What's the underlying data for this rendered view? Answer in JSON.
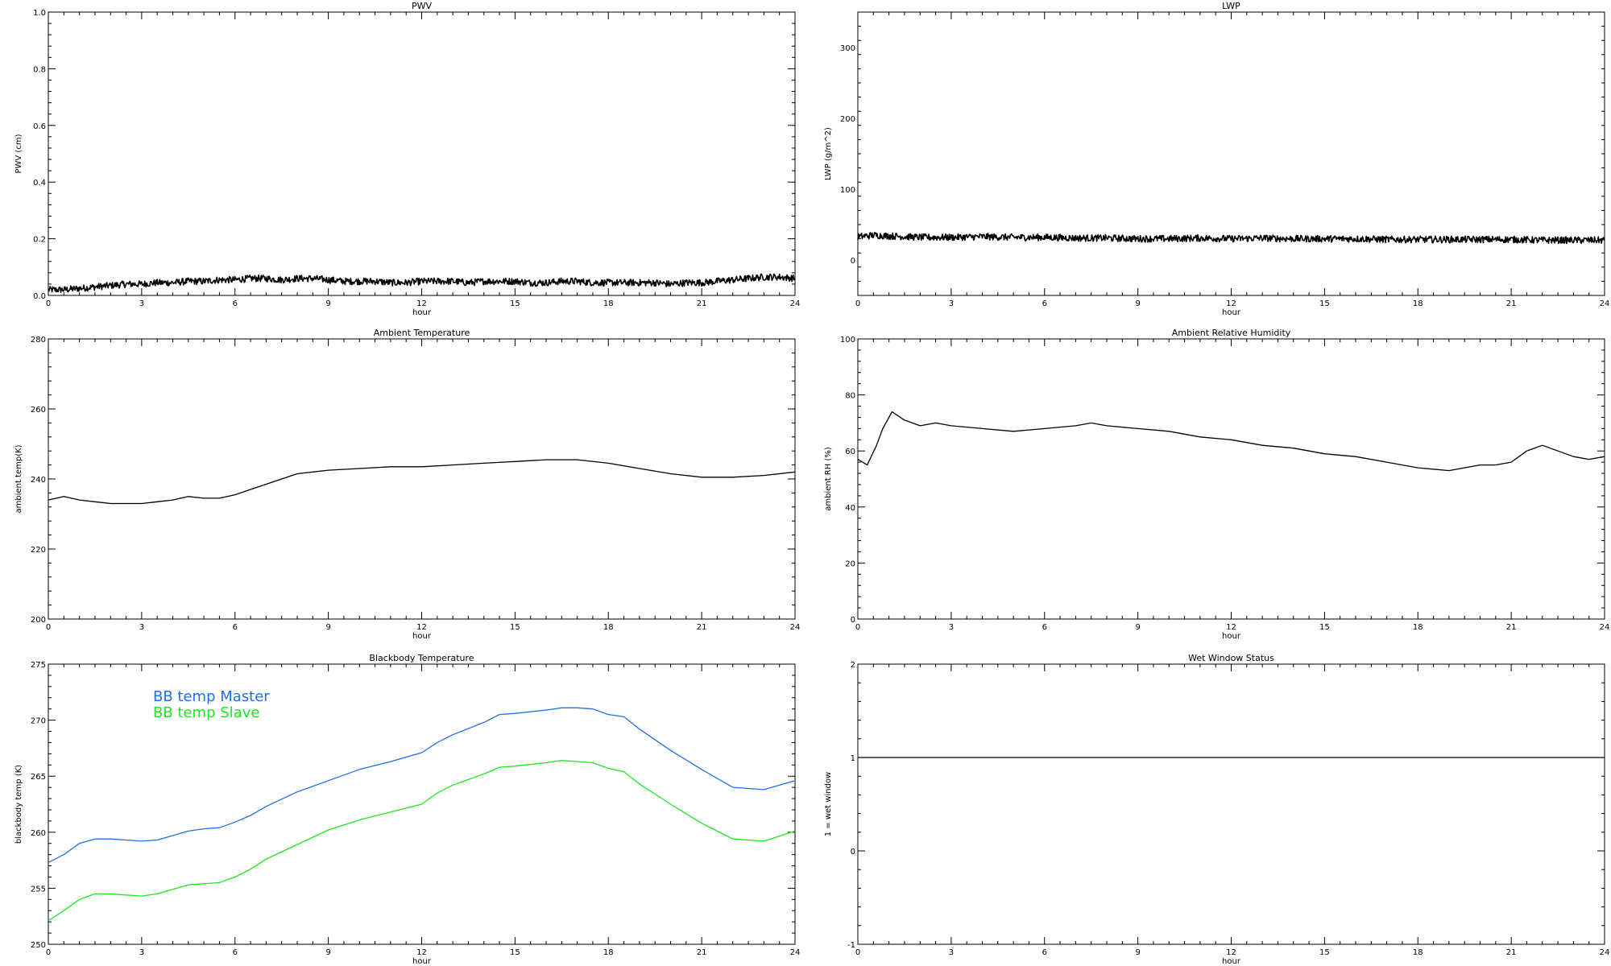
{
  "chart_data": [
    {
      "type": "line",
      "title": "PWV",
      "xlabel": "hour",
      "ylabel": "PWV (cm)",
      "xlim": [
        0,
        24
      ],
      "ylim": [
        0.0,
        1.0
      ],
      "xticks": [
        0,
        3,
        6,
        9,
        12,
        15,
        18,
        21,
        24
      ],
      "xtick_labels": [
        "0",
        "3",
        "6",
        "9",
        "12",
        "15",
        "18",
        "21",
        "24"
      ],
      "yticks": [
        0.0,
        0.2,
        0.4,
        0.6,
        0.8,
        1.0
      ],
      "ytick_labels": [
        "0.0",
        "0.2",
        "0.4",
        "0.6",
        "0.8",
        "1.0"
      ],
      "noisy": true,
      "series": [
        {
          "color": "#000000",
          "x": [
            0,
            0.5,
            1,
            1.5,
            2,
            2.5,
            3,
            3.5,
            4,
            4.5,
            5,
            5.5,
            6,
            6.5,
            7,
            7.5,
            8,
            8.5,
            9,
            9.5,
            10,
            10.5,
            11,
            11.5,
            12,
            12.5,
            13,
            13.5,
            14,
            14.5,
            15,
            15.5,
            16,
            16.5,
            17,
            17.5,
            18,
            18.5,
            19,
            19.5,
            20,
            20.5,
            21,
            21.5,
            22,
            22.5,
            23,
            23.5,
            24
          ],
          "y": [
            0.02,
            0.02,
            0.025,
            0.03,
            0.035,
            0.04,
            0.04,
            0.045,
            0.045,
            0.05,
            0.05,
            0.055,
            0.055,
            0.06,
            0.06,
            0.055,
            0.06,
            0.06,
            0.055,
            0.05,
            0.05,
            0.05,
            0.045,
            0.045,
            0.05,
            0.05,
            0.05,
            0.045,
            0.05,
            0.05,
            0.05,
            0.045,
            0.045,
            0.05,
            0.05,
            0.045,
            0.045,
            0.045,
            0.045,
            0.045,
            0.04,
            0.045,
            0.045,
            0.05,
            0.055,
            0.06,
            0.065,
            0.065,
            0.06
          ]
        }
      ]
    },
    {
      "type": "line",
      "title": "LWP",
      "xlabel": "hour",
      "ylabel": "LWP (g/m^2)",
      "xlim": [
        0,
        24
      ],
      "ylim": [
        -50,
        350
      ],
      "xticks": [
        0,
        3,
        6,
        9,
        12,
        15,
        18,
        21,
        24
      ],
      "xtick_labels": [
        "0",
        "3",
        "6",
        "9",
        "12",
        "15",
        "18",
        "21",
        "24"
      ],
      "yticks": [
        0,
        100,
        200,
        300
      ],
      "ytick_labels": [
        "0",
        "100",
        "200",
        "300"
      ],
      "noisy": true,
      "series": [
        {
          "color": "#000000",
          "x": [
            0,
            0.5,
            1,
            1.5,
            2,
            3,
            4,
            5,
            6,
            7,
            8,
            9,
            10,
            11,
            12,
            13,
            14,
            15,
            16,
            17,
            18,
            19,
            20,
            21,
            22,
            23,
            24
          ],
          "y": [
            33,
            35,
            34,
            33,
            32,
            32,
            33,
            32,
            32,
            31,
            31,
            30,
            30,
            31,
            30,
            31,
            30,
            30,
            30,
            29,
            29,
            29,
            29,
            29,
            28,
            28,
            28
          ]
        }
      ]
    },
    {
      "type": "line",
      "title": "Ambient Temperature",
      "xlabel": "hour",
      "ylabel": "ambient temp(K)",
      "xlim": [
        0,
        24
      ],
      "ylim": [
        200,
        280
      ],
      "xticks": [
        0,
        3,
        6,
        9,
        12,
        15,
        18,
        21,
        24
      ],
      "xtick_labels": [
        "0",
        "3",
        "6",
        "9",
        "12",
        "15",
        "18",
        "21",
        "24"
      ],
      "yticks": [
        200,
        220,
        240,
        260,
        280
      ],
      "ytick_labels": [
        "200",
        "220",
        "240",
        "260",
        "280"
      ],
      "noisy": false,
      "series": [
        {
          "color": "#000000",
          "x": [
            0,
            0.5,
            1,
            1.5,
            2,
            2.5,
            3,
            3.5,
            4,
            4.5,
            5,
            5.5,
            6,
            6.5,
            7,
            7.5,
            8,
            8.5,
            9,
            10,
            11,
            12,
            13,
            14,
            15,
            16,
            17,
            18,
            19,
            20,
            21,
            22,
            23,
            24
          ],
          "y": [
            234,
            235,
            234,
            233.5,
            233,
            233,
            233,
            233.5,
            234,
            235,
            234.5,
            234.5,
            235.5,
            237,
            238.5,
            240,
            241.5,
            242,
            242.5,
            243,
            243.5,
            243.5,
            244,
            244.5,
            245,
            245.5,
            245.5,
            244.5,
            243,
            241.5,
            240.5,
            240.5,
            241,
            242
          ]
        }
      ]
    },
    {
      "type": "line",
      "title": "Ambient Relative Humidity",
      "xlabel": "hour",
      "ylabel": "ambient RH (%)",
      "xlim": [
        0,
        24
      ],
      "ylim": [
        0,
        100
      ],
      "xticks": [
        0,
        3,
        6,
        9,
        12,
        15,
        18,
        21,
        24
      ],
      "xtick_labels": [
        "0",
        "3",
        "6",
        "9",
        "12",
        "15",
        "18",
        "21",
        "24"
      ],
      "yticks": [
        0,
        20,
        40,
        60,
        80,
        100
      ],
      "ytick_labels": [
        "0",
        "20",
        "40",
        "60",
        "80",
        "100"
      ],
      "noisy": false,
      "series": [
        {
          "color": "#000000",
          "x": [
            0,
            0.3,
            0.6,
            0.8,
            1.1,
            1.5,
            2,
            2.5,
            3,
            4,
            5,
            6,
            7,
            7.5,
            8,
            9,
            10,
            11,
            12,
            13,
            14,
            15,
            16,
            17,
            17.5,
            18,
            19,
            20,
            20.5,
            21,
            21.5,
            22,
            22.5,
            23,
            23.5,
            24
          ],
          "y": [
            57,
            55,
            62,
            68,
            74,
            71,
            69,
            70,
            69,
            68,
            67,
            68,
            69,
            70,
            69,
            68,
            67,
            65,
            64,
            62,
            61,
            59,
            58,
            56,
            55,
            54,
            53,
            55,
            55,
            56,
            60,
            62,
            60,
            58,
            57,
            58
          ]
        }
      ]
    },
    {
      "type": "line",
      "title": "Blackbody Temperature",
      "xlabel": "hour",
      "ylabel": "blackbody temp (K)",
      "xlim": [
        0,
        24
      ],
      "ylim": [
        250,
        275
      ],
      "xticks": [
        0,
        3,
        6,
        9,
        12,
        15,
        18,
        21,
        24
      ],
      "xtick_labels": [
        "0",
        "3",
        "6",
        "9",
        "12",
        "15",
        "18",
        "21",
        "24"
      ],
      "yticks": [
        250,
        255,
        260,
        265,
        270,
        275
      ],
      "ytick_labels": [
        "250",
        "255",
        "260",
        "265",
        "270",
        "275"
      ],
      "noisy": false,
      "legend": [
        "BB temp Master",
        "BB temp Slave"
      ],
      "legend_placement": "top-left",
      "series": [
        {
          "name": "BB temp Master",
          "color": "#1f6fe8",
          "x": [
            0,
            0.5,
            1,
            1.5,
            2,
            2.5,
            3,
            3.5,
            4,
            4.5,
            5,
            5.5,
            6,
            6.5,
            7,
            8,
            9,
            10,
            11,
            12,
            12.5,
            13,
            14,
            14.5,
            15,
            16,
            16.5,
            17,
            17.5,
            18,
            18.5,
            19,
            20,
            21,
            22,
            23,
            24
          ],
          "y": [
            257.3,
            258,
            259,
            259.4,
            259.4,
            259.3,
            259.2,
            259.3,
            259.7,
            260.1,
            260.3,
            260.4,
            260.9,
            261.5,
            262.3,
            263.6,
            264.6,
            265.6,
            266.3,
            267.1,
            268,
            268.7,
            269.8,
            270.5,
            270.6,
            270.9,
            271.1,
            271.1,
            271.0,
            270.5,
            270.3,
            269.2,
            267.3,
            265.6,
            264.0,
            263.8,
            264.6
          ]
        },
        {
          "name": "BB temp Slave",
          "color": "#1ee81e",
          "x": [
            0,
            0.5,
            1,
            1.5,
            2,
            2.5,
            3,
            3.5,
            4,
            4.5,
            5,
            5.5,
            6,
            6.5,
            7,
            8,
            9,
            10,
            11,
            12,
            12.5,
            13,
            14,
            14.5,
            15,
            16,
            16.5,
            17,
            17.5,
            18,
            18.5,
            19,
            20,
            21,
            22,
            23,
            24
          ],
          "y": [
            252.1,
            253,
            254,
            254.5,
            254.5,
            254.4,
            254.3,
            254.5,
            254.9,
            255.3,
            255.4,
            255.5,
            256,
            256.7,
            257.6,
            258.9,
            260.2,
            261.1,
            261.8,
            262.5,
            263.5,
            264.2,
            265.2,
            265.8,
            265.9,
            266.2,
            266.4,
            266.3,
            266.2,
            265.7,
            265.4,
            264.3,
            262.5,
            260.8,
            259.4,
            259.2,
            260.1
          ]
        }
      ]
    },
    {
      "type": "line",
      "title": "Wet Window Status",
      "xlabel": "hour",
      "ylabel": "1 = wet window",
      "xlim": [
        0,
        24
      ],
      "ylim": [
        -1,
        2
      ],
      "xticks": [
        0,
        3,
        6,
        9,
        12,
        15,
        18,
        21,
        24
      ],
      "xtick_labels": [
        "0",
        "3",
        "6",
        "9",
        "12",
        "15",
        "18",
        "21",
        "24"
      ],
      "yticks": [
        -1,
        0,
        1,
        2
      ],
      "ytick_labels": [
        "-1",
        "0",
        "1",
        "2"
      ],
      "noisy": false,
      "series": [
        {
          "color": "#000000",
          "x": [
            0,
            24
          ],
          "y": [
            1,
            1
          ]
        }
      ]
    }
  ]
}
